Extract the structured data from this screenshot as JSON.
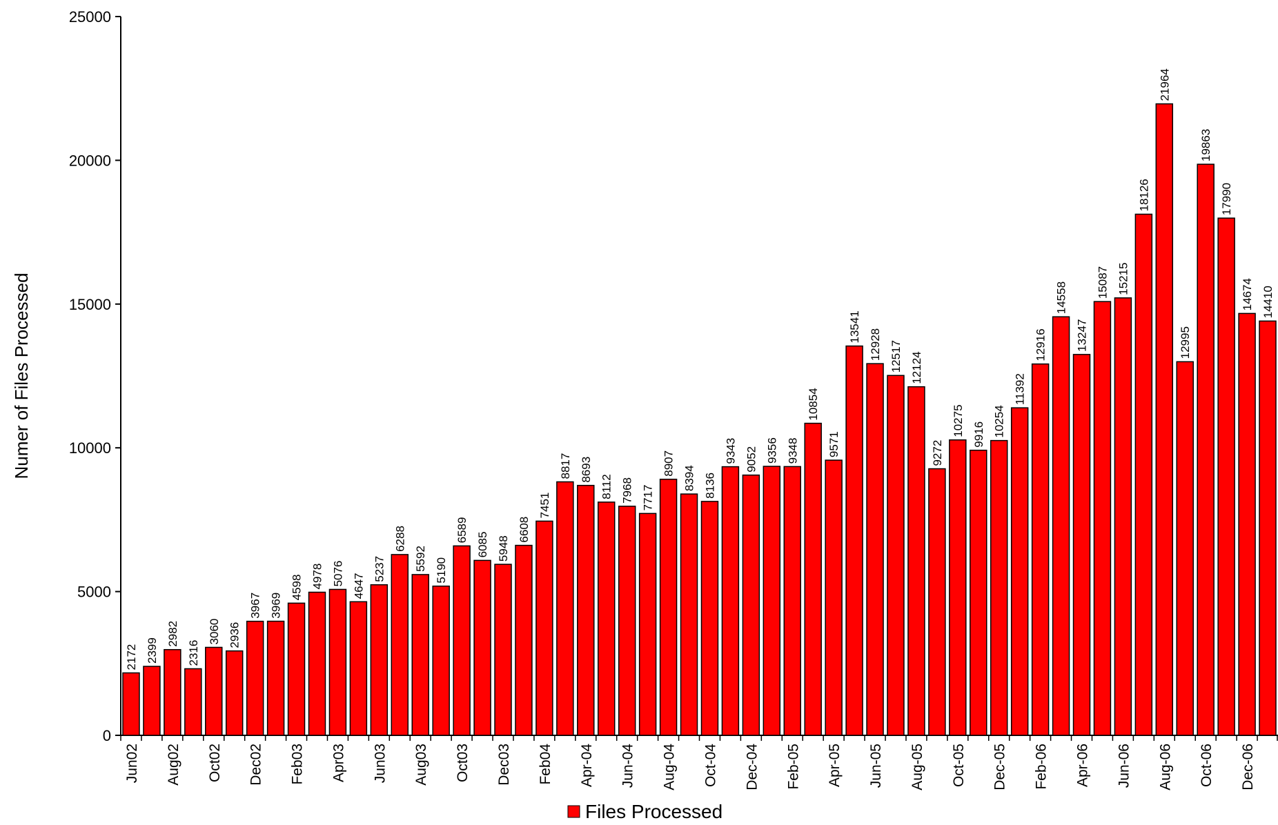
{
  "chart_data": {
    "type": "bar",
    "title": "",
    "xlabel": "",
    "ylabel": "Numer of Files Processed",
    "ylim": [
      0,
      25000
    ],
    "yticks": [
      0,
      5000,
      10000,
      15000,
      20000,
      25000
    ],
    "grid": false,
    "legend_position": "bottom",
    "bar_color": "#ff0000",
    "bar_edge_color": "#000000",
    "xtick_labels": [
      "Jun02",
      "Aug02",
      "Oct02",
      "Dec02",
      "Feb03",
      "Apr03",
      "Jun03",
      "Aug03",
      "Oct03",
      "Dec03",
      "Feb04",
      "Apr-04",
      "Jun-04",
      "Aug-04",
      "Oct-04",
      "Dec-04",
      "Feb-05",
      "Apr-05",
      "Jun-05",
      "Aug-05",
      "Oct-05",
      "Dec-05",
      "Feb-06",
      "Apr-06",
      "Jun-06",
      "Aug-06",
      "Oct-06",
      "Dec-06"
    ],
    "series": [
      {
        "name": "Files Processed",
        "values": [
          2172,
          2399,
          2982,
          2316,
          3060,
          2936,
          3967,
          3969,
          4598,
          4978,
          5076,
          4647,
          5237,
          6288,
          5592,
          5190,
          6589,
          6085,
          5948,
          6608,
          7451,
          8817,
          8693,
          8112,
          7968,
          7717,
          8907,
          8394,
          8136,
          9343,
          9052,
          9356,
          9348,
          10854,
          9571,
          13541,
          12928,
          12517,
          12124,
          9272,
          10275,
          9916,
          10254,
          11392,
          12916,
          14558,
          13247,
          15087,
          15215,
          18126,
          21964,
          12995,
          19863,
          17990,
          14674,
          14410
        ]
      }
    ]
  }
}
